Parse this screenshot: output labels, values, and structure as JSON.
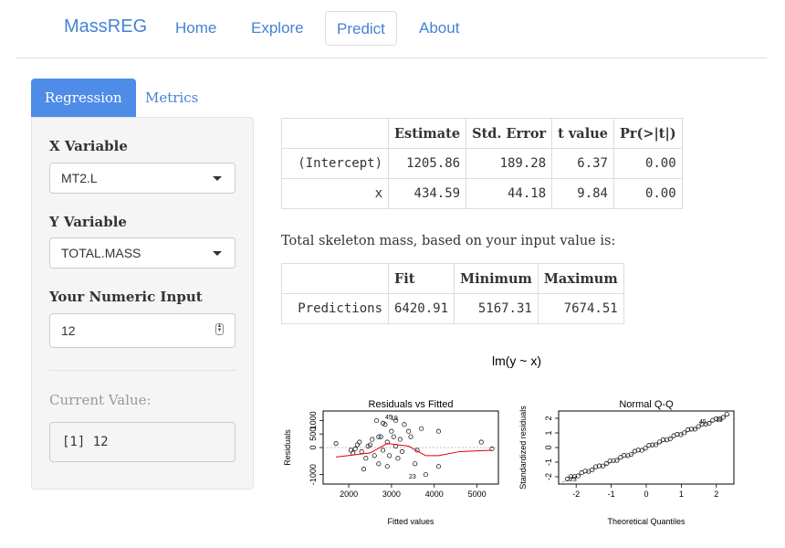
{
  "nav": {
    "brand": "MassREG",
    "items": [
      {
        "label": "Home",
        "active": false
      },
      {
        "label": "Explore",
        "active": false
      },
      {
        "label": "Predict",
        "active": true
      },
      {
        "label": "About",
        "active": false
      }
    ]
  },
  "tabs": [
    {
      "label": "Regression",
      "active": true
    },
    {
      "label": "Metrics",
      "active": false
    }
  ],
  "sidebar": {
    "x_variable": {
      "label": "X Variable",
      "value": "MT2.L"
    },
    "y_variable": {
      "label": "Y Variable",
      "value": "TOTAL.MASS"
    },
    "numeric_input": {
      "label": "Your Numeric Input",
      "value": "12"
    },
    "current_value": {
      "label": "Current Value:",
      "value": "[1]  12"
    }
  },
  "coef_table": {
    "headers": [
      "",
      "Estimate",
      "Std. Error",
      "t value",
      "Pr(>|t|)"
    ],
    "rows": [
      [
        "(Intercept)",
        "1205.86",
        "189.28",
        "6.37",
        "0.00"
      ],
      [
        "x",
        "434.59",
        "44.18",
        "9.84",
        "0.00"
      ]
    ]
  },
  "prediction_text": "Total skeleton mass, based on your input value is:",
  "pred_table": {
    "headers": [
      "",
      "Fit",
      "Minimum",
      "Maximum"
    ],
    "rows": [
      [
        "Predictions",
        "6420.91",
        "5167.31",
        "7674.51"
      ]
    ]
  },
  "plots": {
    "main_title": "lm(y ~ x)",
    "residuals": {
      "title": "Residuals vs Fitted",
      "xlabel": "Fitted values",
      "ylabel": "Residuals",
      "x_ticks": [
        "2000",
        "3000",
        "4000",
        "5000"
      ],
      "y_ticks": [
        "-1000",
        "0",
        "500",
        "1000"
      ],
      "labels": [
        "45",
        "19",
        "23"
      ]
    },
    "qq": {
      "title": "Normal Q-Q",
      "xlabel": "Theoretical Quantiles",
      "ylabel": "Standardized residuals",
      "x_ticks": [
        "-2",
        "-1",
        "0",
        "1",
        "2"
      ],
      "y_ticks": [
        "-2",
        "-1",
        "0",
        "1",
        "2"
      ],
      "labels": [
        "45",
        "19",
        "23"
      ]
    }
  },
  "chart_data": [
    {
      "type": "scatter",
      "title": "Residuals vs Fitted",
      "xlabel": "Fitted values",
      "ylabel": "Residuals",
      "xlim": [
        1400,
        5500
      ],
      "ylim": [
        -1350,
        1350
      ],
      "x": [
        1700,
        2050,
        2100,
        2150,
        2200,
        2250,
        2300,
        2350,
        2400,
        2450,
        2500,
        2550,
        2600,
        2650,
        2700,
        2750,
        2800,
        2850,
        2900,
        2950,
        3000,
        3050,
        3100,
        3150,
        3200,
        3250,
        3300,
        3400,
        3450,
        3550,
        3600,
        3700,
        3800,
        4100,
        4100,
        2700,
        2800,
        2900,
        3100,
        5100,
        5350
      ],
      "y": [
        150,
        -100,
        -200,
        -50,
        100,
        200,
        -150,
        -800,
        -400,
        50,
        100,
        300,
        -300,
        1000,
        -600,
        400,
        900,
        850,
        200,
        -300,
        600,
        400,
        50,
        -400,
        300,
        -150,
        850,
        600,
        400,
        -600,
        -100,
        700,
        -1000,
        600,
        -700,
        400,
        -100,
        -700,
        1000,
        200,
        -50
      ],
      "smoother": {
        "x": [
          1700,
          2500,
          2900,
          3400,
          3800,
          4100,
          4600,
          5350
        ],
        "y": [
          -350,
          -200,
          150,
          50,
          -300,
          -300,
          -150,
          -100
        ]
      }
    },
    {
      "type": "scatter",
      "title": "Normal Q-Q",
      "xlabel": "Theoretical Quantiles",
      "ylabel": "Standardized residuals",
      "xlim": [
        -2.5,
        2.5
      ],
      "ylim": [
        -2.5,
        2.5
      ],
      "reference_line": true
    }
  ]
}
